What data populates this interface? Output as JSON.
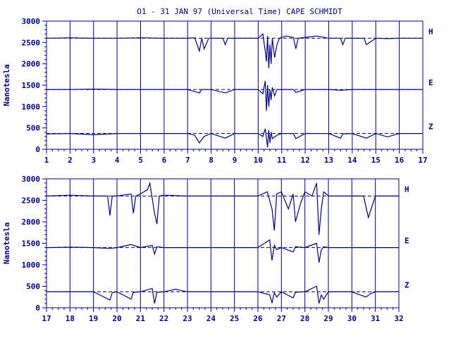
{
  "title": "O1 - 31 JAN 97 (Universal Time) CAPE SCHMIDT",
  "ylabel": "Nanotesla",
  "colors": {
    "ink": "#000080",
    "frame": "#000080",
    "background": "#ffffff"
  },
  "chart_data": [
    {
      "type": "line",
      "title": "O1 - 31 JAN 97 (Universal Time) CAPE SCHMIDT",
      "xlabel": "",
      "ylabel": "Nanotesla",
      "xlim": [
        1,
        17
      ],
      "ylim": [
        0,
        3000
      ],
      "x_ticks": [
        "1",
        "2",
        "3",
        "4",
        "5",
        "6",
        "7",
        "8",
        "9",
        "10",
        "11",
        "12",
        "13",
        "14",
        "15",
        "16",
        "17"
      ],
      "y_ticks": [
        "0",
        "500",
        "1000",
        "1500",
        "2000",
        "2500",
        "3000"
      ],
      "grid": "vertical lines at each day",
      "series": [
        {
          "name": "H",
          "baseline": 2600,
          "x": [
            1,
            2,
            3,
            4,
            5,
            6,
            7,
            7.3,
            7.5,
            7.6,
            7.7,
            7.9,
            8,
            8.5,
            8.6,
            8.7,
            9,
            10,
            10.2,
            10.3,
            10.35,
            10.4,
            10.45,
            10.5,
            10.55,
            10.6,
            10.7,
            10.8,
            10.9,
            11,
            11.2,
            11.5,
            11.6,
            11.7,
            12,
            12.5,
            13,
            13.5,
            13.6,
            13.7,
            14,
            14.5,
            14.6,
            15,
            15.5,
            16,
            17
          ],
          "values": [
            2600,
            2610,
            2600,
            2600,
            2610,
            2600,
            2600,
            2610,
            2300,
            2600,
            2350,
            2600,
            2600,
            2600,
            2450,
            2600,
            2600,
            2600,
            2700,
            2300,
            2050,
            2650,
            1900,
            2450,
            2000,
            2600,
            2150,
            2450,
            2600,
            2620,
            2650,
            2620,
            2350,
            2600,
            2620,
            2650,
            2600,
            2600,
            2450,
            2600,
            2600,
            2600,
            2450,
            2600,
            2590,
            2600,
            2600
          ]
        },
        {
          "name": "E",
          "baseline": 1400,
          "x": [
            1,
            2,
            3,
            4,
            5,
            6,
            7,
            7.5,
            7.6,
            8,
            8.6,
            9,
            10,
            10.2,
            10.3,
            10.35,
            10.4,
            10.45,
            10.5,
            10.55,
            10.6,
            10.7,
            10.8,
            11,
            11.5,
            11.6,
            12,
            13,
            13.5,
            14,
            15,
            16,
            17
          ],
          "values": [
            1400,
            1400,
            1410,
            1400,
            1400,
            1400,
            1400,
            1320,
            1400,
            1400,
            1320,
            1400,
            1400,
            1300,
            1600,
            900,
            1500,
            1000,
            1400,
            1150,
            1450,
            1250,
            1400,
            1400,
            1400,
            1330,
            1400,
            1400,
            1380,
            1400,
            1400,
            1400,
            1400
          ]
        },
        {
          "name": "Z",
          "baseline": 370,
          "x": [
            1,
            2,
            3,
            4,
            5,
            6,
            7,
            7.3,
            7.5,
            7.7,
            8,
            8.6,
            9,
            10,
            10.2,
            10.3,
            10.4,
            10.45,
            10.5,
            10.55,
            10.6,
            10.8,
            11,
            11.5,
            11.6,
            12,
            13,
            13.5,
            13.6,
            14,
            14.6,
            15,
            15.5,
            16,
            17
          ],
          "values": [
            360,
            370,
            340,
            370,
            370,
            370,
            370,
            330,
            150,
            300,
            370,
            260,
            370,
            370,
            300,
            480,
            50,
            450,
            150,
            400,
            250,
            330,
            370,
            370,
            250,
            370,
            370,
            260,
            360,
            370,
            260,
            370,
            290,
            370,
            370
          ]
        }
      ]
    },
    {
      "type": "line",
      "title": "",
      "xlabel": "",
      "ylabel": "Nanotesla",
      "xlim": [
        17,
        32
      ],
      "ylim": [
        0,
        3000
      ],
      "x_ticks": [
        "17",
        "18",
        "19",
        "20",
        "21",
        "22",
        "23",
        "24",
        "25",
        "26",
        "27",
        "28",
        "29",
        "30",
        "31",
        "32"
      ],
      "y_ticks": [
        "0",
        "500",
        "1000",
        "1500",
        "2000",
        "2500",
        "3000"
      ],
      "grid": "vertical lines at each day",
      "series": [
        {
          "name": "H",
          "baseline": 2600,
          "x": [
            17,
            18,
            19,
            19.6,
            19.7,
            19.8,
            20,
            20.6,
            20.7,
            20.8,
            21,
            21.3,
            21.4,
            21.5,
            21.6,
            21.7,
            21.8,
            22,
            23,
            24,
            25,
            26,
            26.4,
            26.6,
            26.7,
            26.8,
            27,
            27.3,
            27.5,
            27.6,
            27.8,
            28,
            28.3,
            28.5,
            28.6,
            28.7,
            28.8,
            29,
            30,
            30.5,
            30.7,
            31,
            31.5,
            32
          ],
          "values": [
            2600,
            2620,
            2600,
            2600,
            2150,
            2600,
            2600,
            2650,
            2200,
            2600,
            2650,
            2750,
            2900,
            2550,
            2200,
            1950,
            2600,
            2620,
            2600,
            2600,
            2600,
            2600,
            2700,
            2300,
            1800,
            2650,
            2700,
            2300,
            2650,
            2000,
            2400,
            2700,
            2600,
            2900,
            1700,
            2300,
            2700,
            2600,
            2600,
            2600,
            2100,
            2600,
            2600,
            2600
          ]
        },
        {
          "name": "E",
          "baseline": 1400,
          "x": [
            17,
            18,
            19,
            19.7,
            20,
            20.6,
            21,
            21.5,
            21.6,
            21.7,
            22,
            23,
            24,
            25,
            26,
            26.5,
            26.6,
            26.7,
            26.8,
            27,
            27.5,
            27.6,
            28,
            28.5,
            28.6,
            28.7,
            28.8,
            29,
            30,
            31,
            32
          ],
          "values": [
            1400,
            1410,
            1400,
            1380,
            1400,
            1470,
            1400,
            1450,
            1250,
            1420,
            1400,
            1400,
            1400,
            1400,
            1400,
            1580,
            1100,
            1450,
            1350,
            1400,
            1300,
            1420,
            1400,
            1500,
            1050,
            1350,
            1420,
            1400,
            1400,
            1400,
            1400
          ]
        },
        {
          "name": "Z",
          "baseline": 370,
          "x": [
            17,
            18,
            19,
            19.7,
            19.8,
            20,
            20.6,
            20.7,
            21,
            21.5,
            21.6,
            21.7,
            22,
            22.5,
            23,
            24,
            25,
            26,
            26.5,
            26.6,
            26.7,
            26.8,
            27,
            27.5,
            27.6,
            28,
            28.5,
            28.6,
            28.7,
            28.8,
            29,
            30,
            30.6,
            30.8,
            31,
            32
          ],
          "values": [
            370,
            370,
            370,
            180,
            350,
            370,
            200,
            360,
            370,
            450,
            100,
            360,
            370,
            430,
            370,
            370,
            370,
            370,
            300,
            120,
            350,
            250,
            370,
            230,
            360,
            370,
            500,
            100,
            300,
            200,
            370,
            370,
            250,
            330,
            370,
            370
          ]
        }
      ]
    }
  ]
}
